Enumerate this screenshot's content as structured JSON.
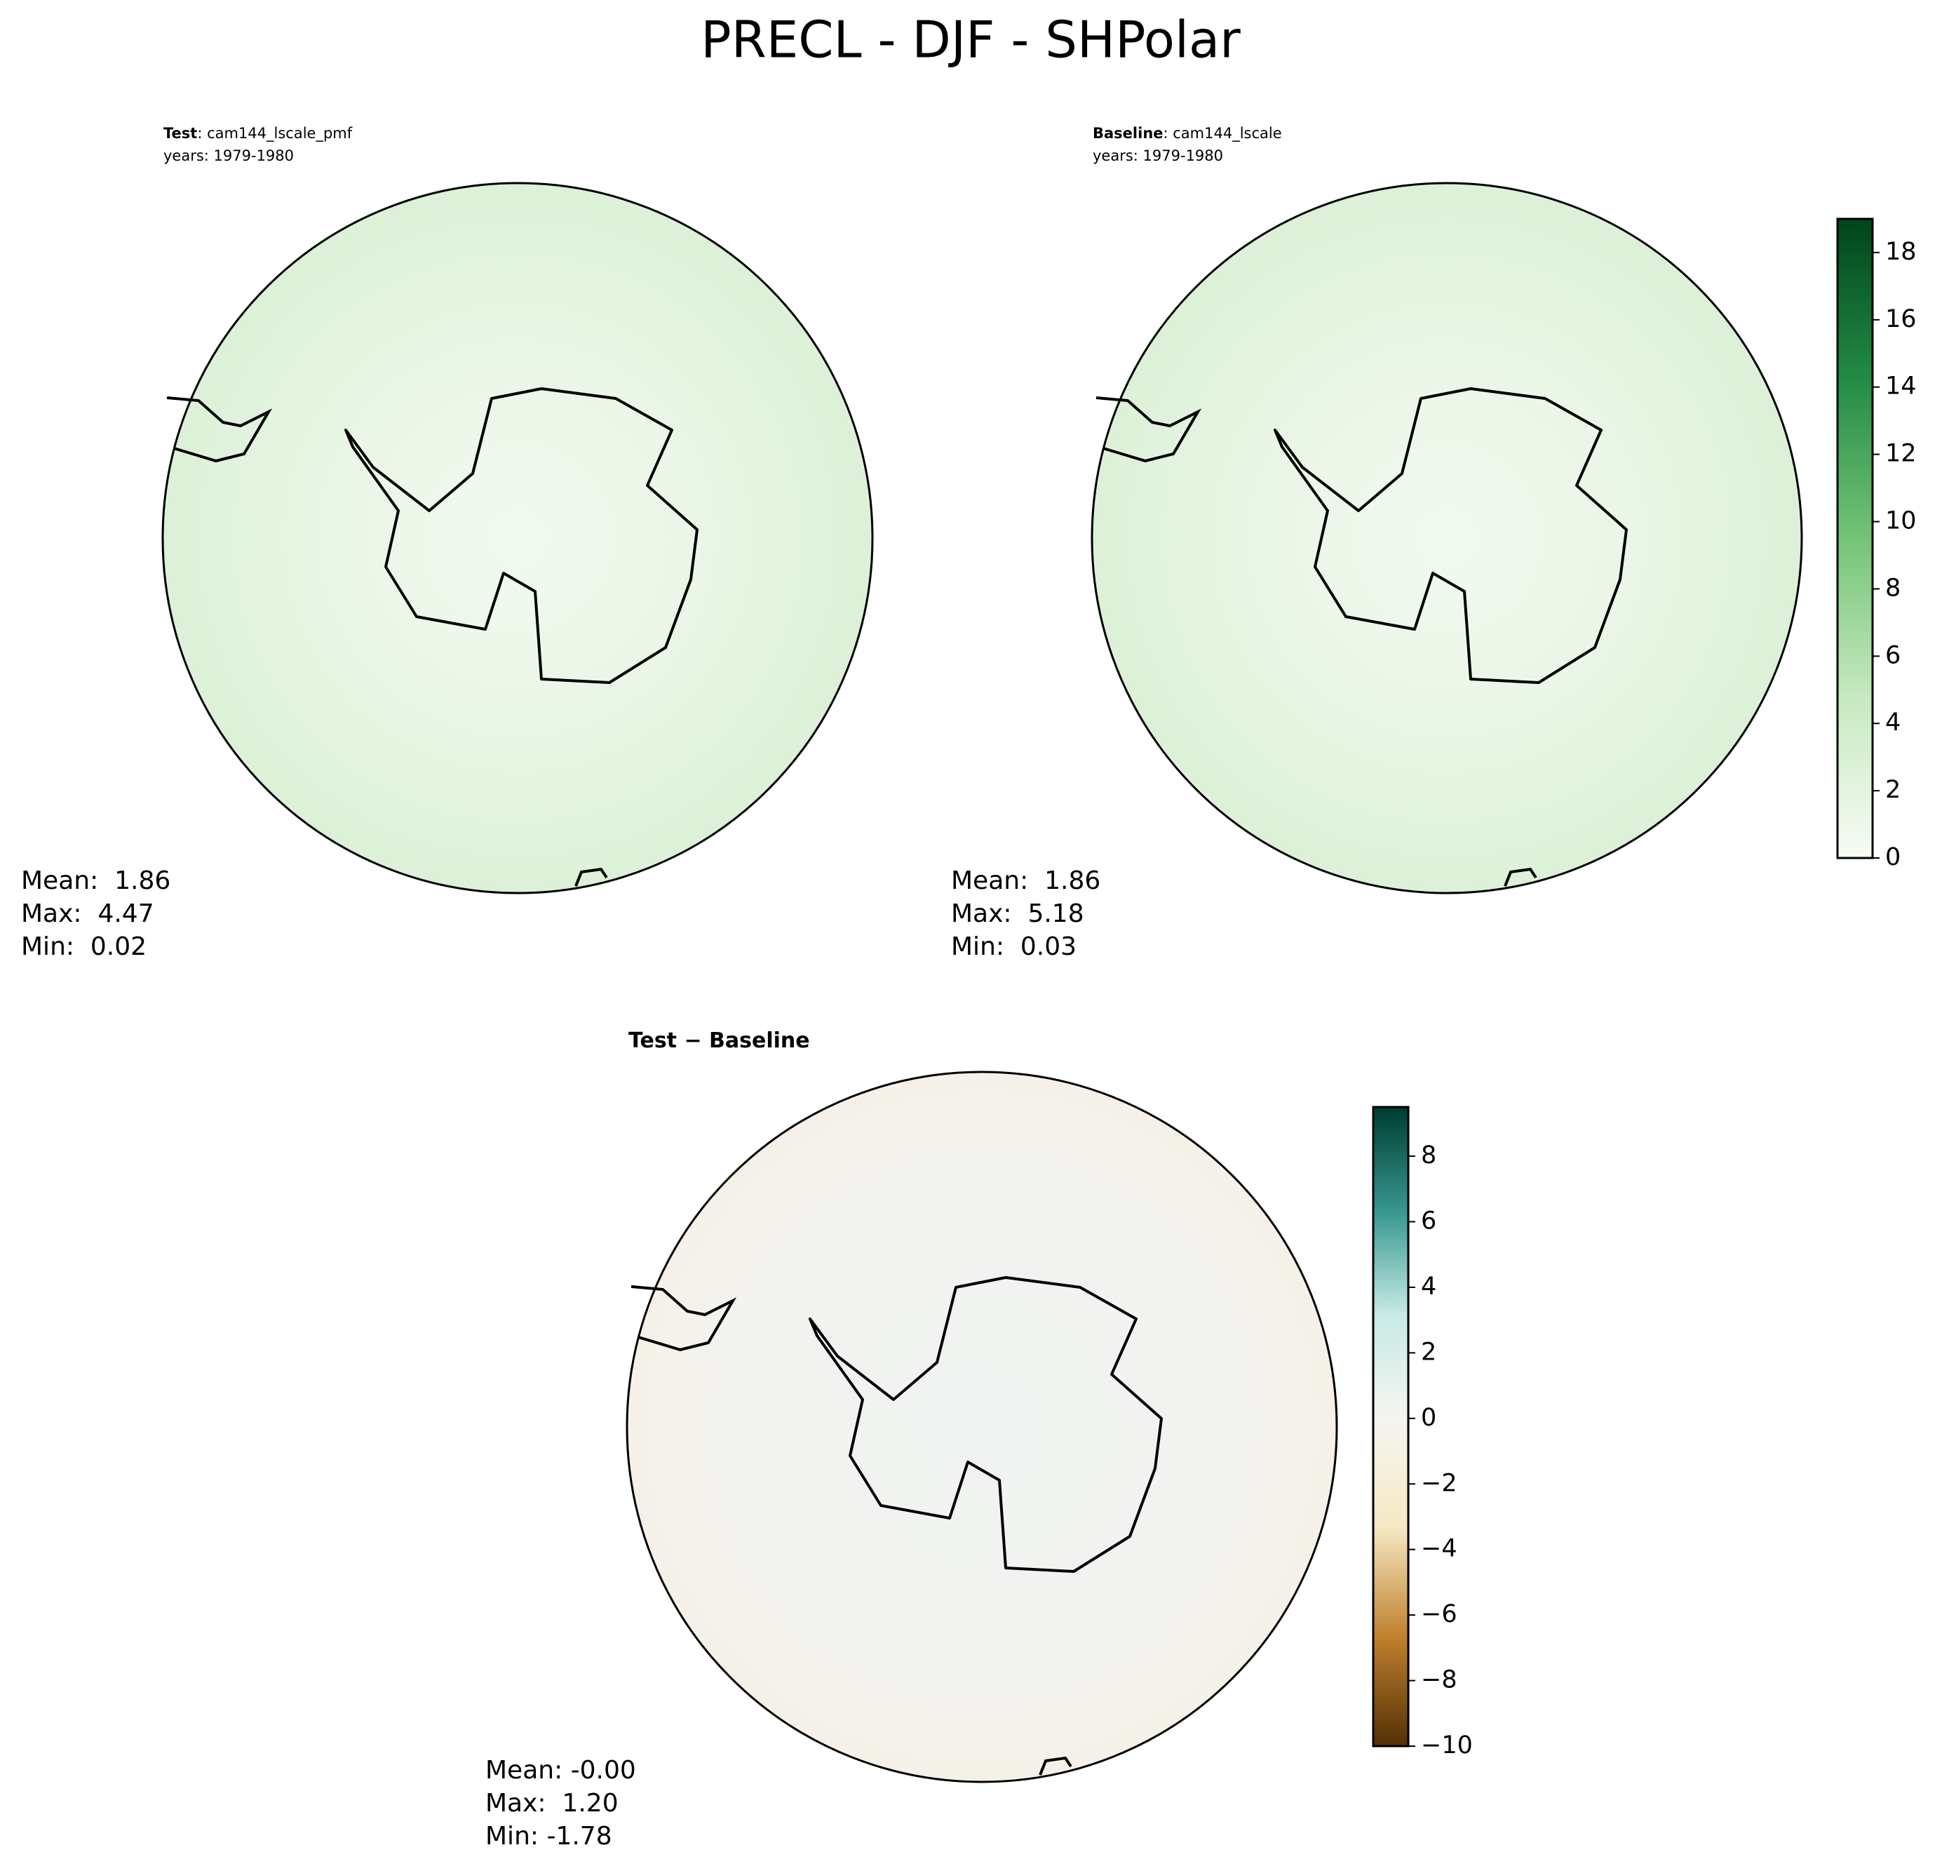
{
  "title": "PRECL - DJF - SHPolar",
  "chart_data": [
    {
      "type": "map",
      "label": "Test",
      "name": ": cam144_lscale_pmf",
      "years": "years: 1979-1980",
      "stats": [
        "Mean:  1.86",
        "Max:  4.47",
        "Min:  0.02"
      ]
    },
    {
      "type": "map",
      "label": "Baseline",
      "name": ": cam144_lscale",
      "years": "years: 1979-1980",
      "stats": [
        "Mean:  1.86",
        "Max:  5.18",
        "Min:  0.03"
      ],
      "colorbar": {
        "colors": [
          "#f7fcf5",
          "#c7e9c0",
          "#74c476",
          "#238b45",
          "#00441b"
        ],
        "ylim": [
          0,
          19
        ],
        "yticks": [
          0,
          2,
          4,
          6,
          8,
          10,
          12,
          14,
          16,
          18
        ]
      }
    },
    {
      "type": "map",
      "title": "Test − Baseline",
      "stats": [
        "Mean: -0.00",
        "Max:  1.20",
        "Min: -1.78"
      ],
      "colorbar": {
        "colors": [
          "#543005",
          "#bf812d",
          "#f6e8c3",
          "#f5f5f0",
          "#c7eae5",
          "#35978f",
          "#003c30"
        ],
        "ylim": [
          -10,
          9.5
        ],
        "yticks": [
          {
            "value": -10,
            "label": "−10"
          },
          {
            "value": -8,
            "label": "−8"
          },
          {
            "value": -6,
            "label": "−6"
          },
          {
            "value": -4,
            "label": "−4"
          },
          {
            "value": -2,
            "label": "−2"
          },
          0,
          2,
          4,
          6,
          8
        ]
      }
    }
  ]
}
